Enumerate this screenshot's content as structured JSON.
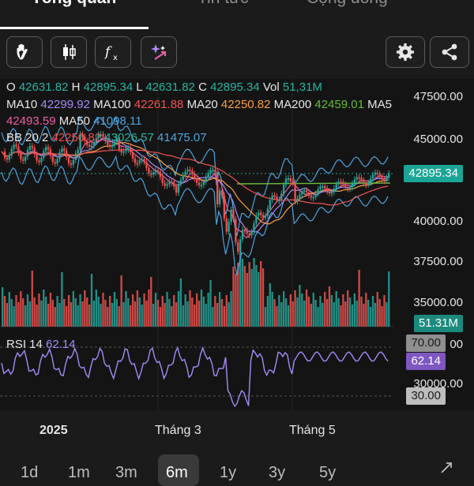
{
  "tabs": [
    {
      "label": "Tổng quan",
      "active": true
    },
    {
      "label": "Tin tức",
      "active": false
    },
    {
      "label": "Cộng đồng",
      "active": false
    }
  ],
  "toolbar": {
    "buttons": [
      "hand-icon",
      "candlestick-icon",
      "function-icon",
      "sparkle-draw-icon",
      "settings-icon",
      "share-icon"
    ]
  },
  "ohlc": {
    "o_label": "O",
    "o": "42631.82",
    "h_label": "H",
    "h": "42895.34",
    "l_label": "L",
    "l": "42631.82",
    "c_label": "C",
    "c": "42895.34",
    "vol_label": "Vol",
    "vol": "51,31M"
  },
  "ma": {
    "ma10_label": "MA10",
    "ma10": "42299.92",
    "ma100_label": "MA100",
    "ma100": "42261.88",
    "ma20_label": "MA20",
    "ma20": "42250.82",
    "ma200_label": "MA200",
    "ma200": "42459.01",
    "ma5_label": "MA5",
    "ma5": "42493.59",
    "ma50_label": "MA50",
    "ma50": "41098.11"
  },
  "bb": {
    "label": "BB 20 2",
    "mid": "42250.82",
    "upper": "43026.57",
    "lower": "41475.07"
  },
  "rsi": {
    "label": "RSI 14",
    "value": "62.14"
  },
  "y_axis": {
    "price_ticks": [
      "47500.00",
      "45000.00",
      "40000.00",
      "37500.00",
      "35000.00"
    ],
    "rsi_ticks": [
      "00",
      "30000.00"
    ],
    "current_price": "42895.34",
    "current_volume": "51.31M",
    "rsi_upper": "70.00",
    "rsi_current": "62.14",
    "rsi_lower": "30.00"
  },
  "x_axis": {
    "labels": [
      "2025",
      "Tháng 3",
      "Tháng 5"
    ]
  },
  "ranges": {
    "items": [
      "1d",
      "1m",
      "3m",
      "6m",
      "1y",
      "3y",
      "5y"
    ],
    "selected": "6m"
  },
  "colors": {
    "up": "#26a69a",
    "down": "#ef5350",
    "background": "#141414",
    "price_badge": "#1ba596",
    "rsi_badge": "#7e57c2",
    "rsi_line": "#a78bfa"
  }
}
